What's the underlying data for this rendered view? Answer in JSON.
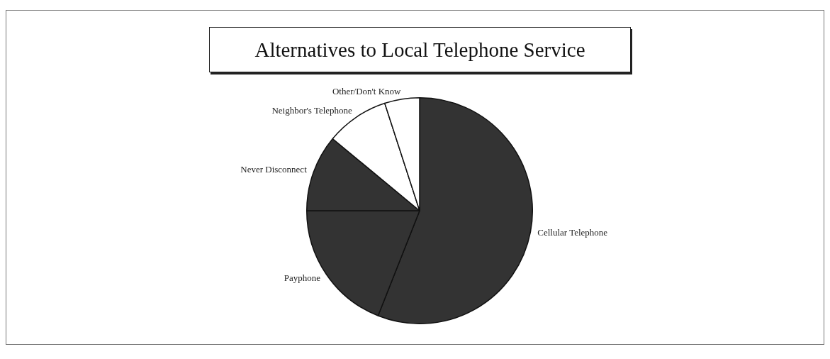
{
  "chart_data": {
    "type": "pie",
    "title": "Alternatives to Local Telephone Service",
    "categories": [
      "Cellular Telephone",
      "Payphone",
      "Never Disconnect",
      "Neighbor's Telephone",
      "Other/Don't Know"
    ],
    "values": [
      56,
      19,
      11,
      9,
      5
    ],
    "colors": [
      "#333333",
      "#333333",
      "#333333",
      "#ffffff",
      "#ffffff"
    ],
    "legend": false
  }
}
